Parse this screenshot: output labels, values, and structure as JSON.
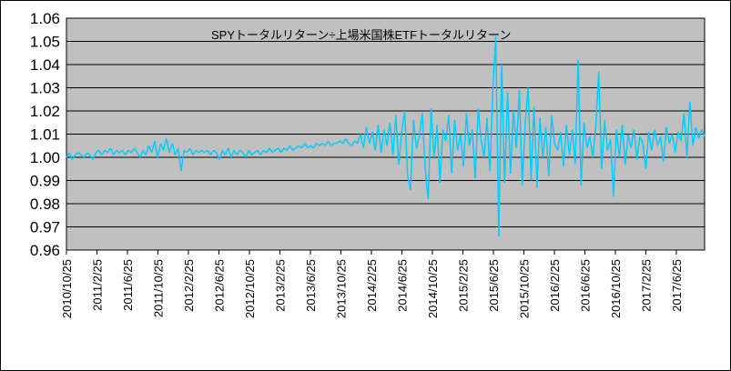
{
  "chart_data": {
    "type": "line",
    "title": "SPYトータルリターン÷上場米国株ETFトータルリターン",
    "xlabel": "",
    "ylabel": "",
    "ylim": [
      0.96,
      1.06
    ],
    "yticks": [
      "1.06",
      "1.05",
      "1.04",
      "1.03",
      "1.02",
      "1.01",
      "1.00",
      "0.99",
      "0.98",
      "0.97",
      "0.96"
    ],
    "xticks": [
      "2010/10/25",
      "2011/2/25",
      "2011/6/25",
      "2011/10/25",
      "2012/2/25",
      "2012/6/25",
      "2012/10/25",
      "2013/2/25",
      "2013/6/25",
      "2013/10/25",
      "2014/2/25",
      "2014/6/25",
      "2014/10/25",
      "2015/2/25",
      "2015/6/25",
      "2015/10/25",
      "2016/2/25",
      "2016/6/25",
      "2016/10/25",
      "2017/2/25",
      "2017/6/25"
    ],
    "grid": true,
    "series": [
      {
        "name": "SPYトータルリターン÷上場米国株ETFトータルリターン",
        "color": "#00CCFF",
        "values": [
          1.0,
          1.002,
          0.999,
          1.001,
          1.002,
          1.001,
          1.0,
          1.002,
          1.001,
          0.999,
          1.002,
          1.003,
          1.001,
          1.003,
          1.002,
          1.004,
          1.001,
          1.003,
          1.002,
          1.003,
          1.001,
          1.003,
          1.002,
          1.004,
          1.002,
          1.0,
          1.003,
          1.001,
          1.005,
          1.002,
          1.007,
          1.0,
          1.006,
          1.003,
          1.008,
          1.002,
          1.006,
          1.001,
          1.004,
          0.994,
          1.003,
          1.002,
          1.004,
          1.001,
          1.003,
          1.002,
          1.003,
          1.002,
          1.003,
          1.001,
          1.003,
          1.002,
          0.999,
          1.003,
          1.001,
          1.004,
          1.0,
          1.003,
          1.001,
          1.003,
          1.002,
          1.0,
          1.003,
          1.001,
          1.002,
          1.003,
          1.001,
          1.003,
          1.002,
          1.004,
          1.002,
          1.003,
          1.004,
          1.002,
          1.004,
          1.003,
          1.005,
          1.003,
          1.004,
          1.005,
          1.004,
          1.006,
          1.004,
          1.005,
          1.004,
          1.006,
          1.005,
          1.006,
          1.005,
          1.007,
          1.005,
          1.006,
          1.006,
          1.007,
          1.006,
          1.008,
          1.006,
          1.005,
          1.007,
          1.006,
          1.01,
          1.004,
          1.013,
          1.006,
          1.011,
          1.003,
          1.014,
          1.002,
          1.012,
          1.005,
          1.015,
          1.001,
          1.018,
          0.997,
          1.011,
          1.02,
          0.992,
          0.986,
          1.016,
          1.004,
          1.009,
          1.019,
          0.995,
          0.982,
          1.021,
          1.0,
          1.014,
          0.989,
          1.012,
          1.007,
          1.018,
          0.993,
          1.016,
          1.003,
          1.01,
          0.996,
          1.019,
          1.005,
          1.012,
          0.991,
          1.021,
          1.008,
          1.0,
          1.017,
          0.994,
          1.03,
          1.052,
          0.966,
          1.04,
          0.989,
          1.028,
          0.993,
          1.02,
          1.004,
          1.029,
          0.988,
          1.015,
          1.03,
          0.99,
          1.022,
          0.987,
          1.017,
          1.0,
          1.013,
          0.992,
          1.018,
          1.006,
          1.003,
          1.011,
          0.996,
          1.014,
          1.001,
          1.012,
          0.997,
          1.042,
          0.988,
          1.015,
          1.004,
          1.009,
          1.0,
          1.013,
          1.037,
          0.995,
          1.016,
          1.003,
          1.008,
          0.983,
          1.012,
          1.0,
          1.014,
          0.997,
          1.01,
          1.004,
          1.012,
          0.999,
          1.009,
          1.006,
          0.995,
          1.011,
          1.003,
          1.012,
          1.005,
          1.009,
          0.998,
          1.013,
          1.006,
          1.01,
          1.002,
          1.011,
          1.007,
          1.019,
          1.0,
          1.024,
          1.005,
          1.013,
          1.008,
          1.012,
          1.009
        ]
      }
    ],
    "colors": {
      "plot_bg": "#C0C0C0",
      "grid": "#000000"
    }
  }
}
